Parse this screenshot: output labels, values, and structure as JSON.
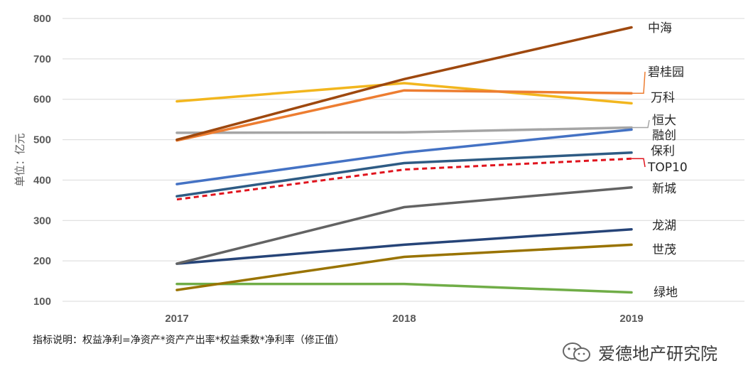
{
  "chart_data": {
    "type": "line",
    "x": [
      "2017",
      "2018",
      "2019"
    ],
    "ylabel": "单位：亿元",
    "ylim": [
      100,
      800
    ],
    "yticks": [
      100,
      200,
      300,
      400,
      500,
      600,
      700,
      800
    ],
    "grid": true,
    "legend": "right-end labels",
    "series": [
      {
        "name": "中海",
        "values": [
          500,
          650,
          778
        ],
        "color": "#9E480E"
      },
      {
        "name": "碧桂园",
        "values": [
          498,
          622,
          615
        ],
        "color": "#ED7D31"
      },
      {
        "name": "万科",
        "values": [
          595,
          640,
          590
        ],
        "color": "#F2B61E"
      },
      {
        "name": "恒大",
        "values": [
          517,
          518,
          530
        ],
        "color": "#A5A5A5"
      },
      {
        "name": "融创",
        "values": [
          390,
          468,
          525
        ],
        "color": "#4472C4"
      },
      {
        "name": "保利",
        "values": [
          360,
          442,
          468
        ],
        "color": "#2E5B84"
      },
      {
        "name": "TOP10",
        "values": [
          352,
          426,
          453
        ],
        "color": "#E0141E",
        "dashed": true
      },
      {
        "name": "新城",
        "values": [
          193,
          333,
          382
        ],
        "color": "#636363"
      },
      {
        "name": "龙湖",
        "values": [
          193,
          240,
          278
        ],
        "color": "#264478"
      },
      {
        "name": "世茂",
        "values": [
          128,
          210,
          240
        ],
        "color": "#997300"
      },
      {
        "name": "绿地",
        "values": [
          143,
          143,
          122
        ],
        "color": "#70AD47"
      }
    ]
  },
  "note": "指标说明：权益净利=净资产*资产产出率*权益乘数*净利率（修正值）",
  "watermark": {
    "text": "爱德地产研究院",
    "icon": "wechat-icon"
  }
}
